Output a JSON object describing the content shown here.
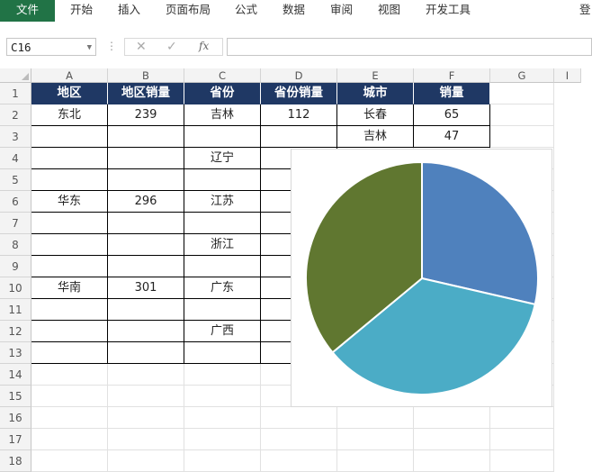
{
  "ribbon": {
    "tabs": [
      "文件",
      "开始",
      "插入",
      "页面布局",
      "公式",
      "数据",
      "审阅",
      "视图",
      "开发工具"
    ],
    "login_label": "登"
  },
  "formula_bar": {
    "name_box": "C16",
    "cancel_icon": "✕",
    "enter_icon": "✓",
    "fx_label": "fx",
    "formula": ""
  },
  "grid": {
    "columns": [
      "A",
      "B",
      "C",
      "D",
      "E",
      "F",
      "G",
      "I"
    ],
    "rows": [
      "1",
      "2",
      "3",
      "4",
      "5",
      "6",
      "7",
      "8",
      "9",
      "10",
      "11",
      "12",
      "13",
      "14",
      "15",
      "16",
      "17",
      "18"
    ],
    "header": [
      "地区",
      "地区销量",
      "省份",
      "省份销量",
      "城市",
      "销量"
    ],
    "cells": {
      "A2": "东北",
      "B2": "239",
      "C2": "吉林",
      "D2": "112",
      "E2": "长春",
      "F2": "65",
      "E3": "吉林",
      "F3": "47",
      "C4": "辽宁",
      "A6": "华东",
      "B6": "296",
      "C6": "江苏",
      "C8": "浙江",
      "A10": "华南",
      "B10": "301",
      "C10": "广东",
      "C12": "广西"
    }
  },
  "chart_data": {
    "type": "pie",
    "categories": [
      "东北",
      "华东",
      "华南"
    ],
    "values": [
      239,
      296,
      301
    ],
    "colors": [
      "#4f81bd",
      "#4bacc6",
      "#607730"
    ],
    "title": ""
  }
}
